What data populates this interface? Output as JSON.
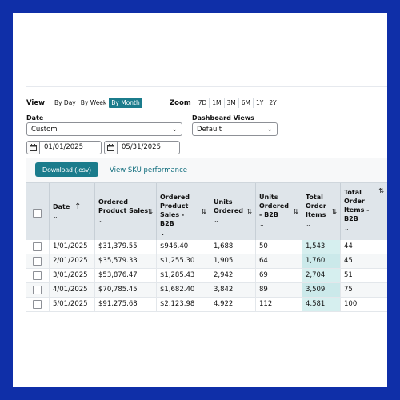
{
  "view": {
    "label": "View",
    "options": [
      "By Day",
      "By Week",
      "By Month"
    ],
    "active": "By Month"
  },
  "zoom": {
    "label": "Zoom",
    "options": [
      "7D",
      "1M",
      "3M",
      "6M",
      "1Y",
      "2Y"
    ]
  },
  "date": {
    "label": "Date",
    "selected": "Custom",
    "start": "01/01/2025",
    "end": "05/31/2025"
  },
  "dashboard": {
    "label": "Dashboard Views",
    "selected": "Default"
  },
  "actions": {
    "download": "Download (.csv)",
    "sku_link": "View SKU performance"
  },
  "table": {
    "headers": {
      "date": "Date",
      "ordered_sales": "Ordered Product Sales",
      "ordered_sales_b2b": "Ordered Product Sales - B2B",
      "units": "Units Ordered",
      "units_b2b": "Units Ordered - B2B",
      "items": "Total Order Items",
      "items_b2b": "Total Order Items - B2B"
    },
    "rows": [
      {
        "date": "1/01/2025",
        "sales": "$31,379.55",
        "sales_b2b": "$946.40",
        "units": "1,688",
        "units_b2b": "50",
        "items": "1,543",
        "items_b2b": "44"
      },
      {
        "date": "2/01/2025",
        "sales": "$35,579.33",
        "sales_b2b": "$1,255.30",
        "units": "1,905",
        "units_b2b": "64",
        "items": "1,760",
        "items_b2b": "45"
      },
      {
        "date": "3/01/2025",
        "sales": "$53,876.47",
        "sales_b2b": "$1,285.43",
        "units": "2,942",
        "units_b2b": "69",
        "items": "2,704",
        "items_b2b": "51"
      },
      {
        "date": "4/01/2025",
        "sales": "$70,785.45",
        "sales_b2b": "$1,682.40",
        "units": "3,842",
        "units_b2b": "89",
        "items": "3,509",
        "items_b2b": "75"
      },
      {
        "date": "5/01/2025",
        "sales": "$91,275.68",
        "sales_b2b": "$2,123.98",
        "units": "4,922",
        "units_b2b": "112",
        "items": "4,581",
        "items_b2b": "100"
      }
    ]
  },
  "icons": {
    "calendar": "calendar-icon",
    "chevron": "chevron-down-icon",
    "sort": "sort-icon"
  },
  "colors": {
    "accent": "#1b7c8c",
    "frame": "#0f2fa8",
    "highlight": "#d6efef"
  }
}
